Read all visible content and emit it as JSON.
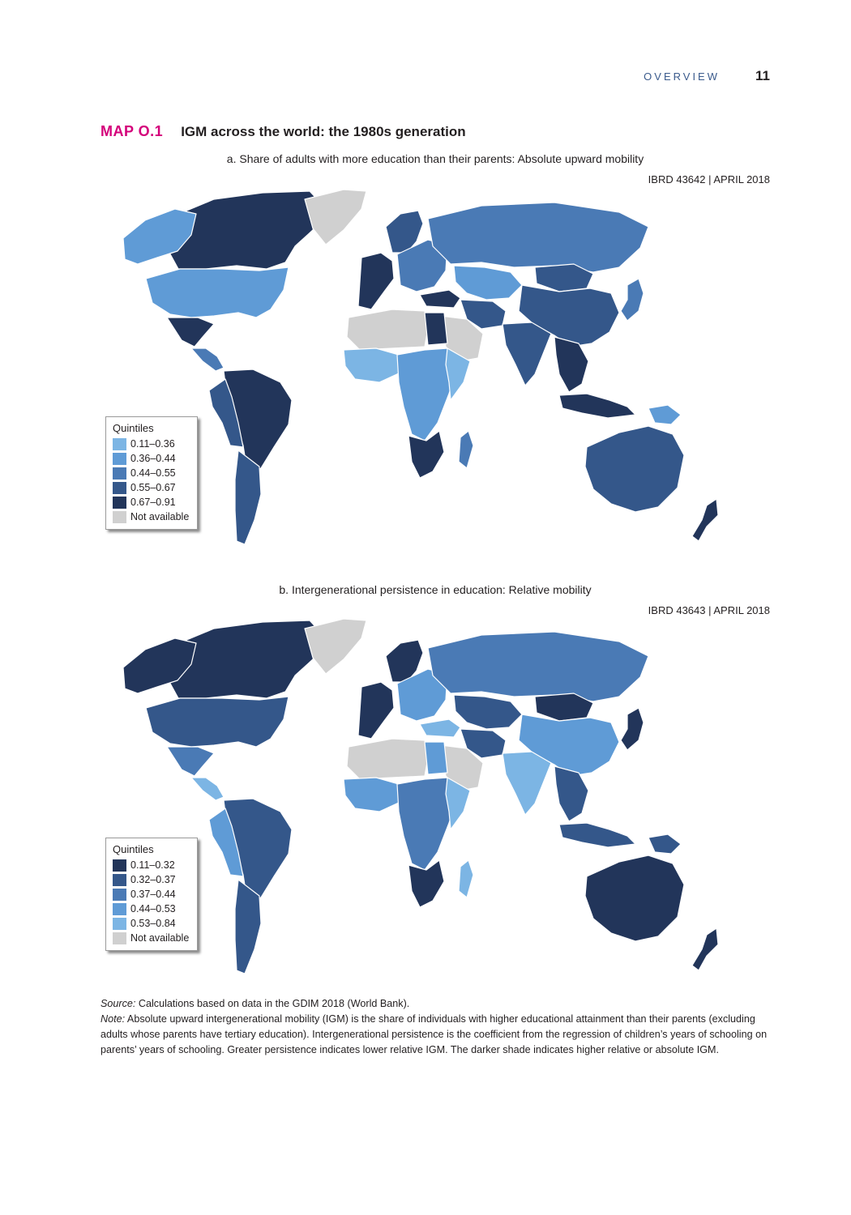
{
  "header": {
    "section": "OVERVIEW",
    "page_number": "11"
  },
  "map": {
    "label": "MAP O.1",
    "title": "IGM across the world: the 1980s generation"
  },
  "colors": {
    "q1": "#7cb5e4",
    "q2": "#5f9bd6",
    "q3": "#4a7ab5",
    "q4": "#34578a",
    "q5": "#22355a",
    "na": "#d0d0d0",
    "ocean": "#ffffff",
    "accent": "#d4007a"
  },
  "panels": [
    {
      "title": "a. Share of adults with more education than their parents: Absolute upward mobility",
      "ibrd": "IBRD 43642 | APRIL 2018",
      "legend": {
        "title": "Quintiles",
        "items": [
          {
            "label": "0.11–0.36",
            "color": "#7cb5e4"
          },
          {
            "label": "0.36–0.44",
            "color": "#5f9bd6"
          },
          {
            "label": "0.44–0.55",
            "color": "#4a7ab5"
          },
          {
            "label": "0.55–0.67",
            "color": "#34578a"
          },
          {
            "label": "0.67–0.91",
            "color": "#22355a"
          },
          {
            "label": "Not available",
            "color": "#d0d0d0"
          }
        ]
      },
      "regions": [
        {
          "name": "canada",
          "color": "#22355a"
        },
        {
          "name": "alaska",
          "color": "#5f9bd6"
        },
        {
          "name": "greenland",
          "color": "#d0d0d0"
        },
        {
          "name": "usa",
          "color": "#5f9bd6"
        },
        {
          "name": "mexico",
          "color": "#22355a"
        },
        {
          "name": "central-america",
          "color": "#4a7ab5"
        },
        {
          "name": "south-america",
          "color": "#22355a"
        },
        {
          "name": "south-america-west",
          "color": "#34578a"
        },
        {
          "name": "southern-cone",
          "color": "#34578a"
        },
        {
          "name": "western-europe",
          "color": "#22355a"
        },
        {
          "name": "scandinavia",
          "color": "#34578a"
        },
        {
          "name": "eastern-europe",
          "color": "#4a7ab5"
        },
        {
          "name": "russia",
          "color": "#4a7ab5"
        },
        {
          "name": "turkey",
          "color": "#22355a"
        },
        {
          "name": "central-asia",
          "color": "#5f9bd6"
        },
        {
          "name": "middle-east",
          "color": "#34578a"
        },
        {
          "name": "arabian-peninsula",
          "color": "#d0d0d0"
        },
        {
          "name": "north-africa",
          "color": "#d0d0d0"
        },
        {
          "name": "egypt",
          "color": "#22355a"
        },
        {
          "name": "west-africa",
          "color": "#7cb5e4"
        },
        {
          "name": "central-africa",
          "color": "#5f9bd6"
        },
        {
          "name": "east-africa",
          "color": "#7cb5e4"
        },
        {
          "name": "southern-africa",
          "color": "#22355a"
        },
        {
          "name": "madagascar",
          "color": "#4a7ab5"
        },
        {
          "name": "mongolia",
          "color": "#34578a"
        },
        {
          "name": "china",
          "color": "#34578a"
        },
        {
          "name": "india",
          "color": "#34578a"
        },
        {
          "name": "southeast-asia",
          "color": "#22355a"
        },
        {
          "name": "japan",
          "color": "#4a7ab5"
        },
        {
          "name": "indonesia",
          "color": "#22355a"
        },
        {
          "name": "papua",
          "color": "#5f9bd6"
        },
        {
          "name": "australia",
          "color": "#34578a"
        },
        {
          "name": "new-zealand",
          "color": "#22355a"
        }
      ]
    },
    {
      "title": "b. Intergenerational persistence in education: Relative mobility",
      "ibrd": "IBRD 43643 | APRIL 2018",
      "legend": {
        "title": "Quintiles",
        "items": [
          {
            "label": "0.11–0.32",
            "color": "#22355a"
          },
          {
            "label": "0.32–0.37",
            "color": "#34578a"
          },
          {
            "label": "0.37–0.44",
            "color": "#4a7ab5"
          },
          {
            "label": "0.44–0.53",
            "color": "#5f9bd6"
          },
          {
            "label": "0.53–0.84",
            "color": "#7cb5e4"
          },
          {
            "label": "Not available",
            "color": "#d0d0d0"
          }
        ]
      },
      "regions": [
        {
          "name": "canada",
          "color": "#22355a"
        },
        {
          "name": "alaska",
          "color": "#22355a"
        },
        {
          "name": "greenland",
          "color": "#d0d0d0"
        },
        {
          "name": "usa",
          "color": "#34578a"
        },
        {
          "name": "mexico",
          "color": "#4a7ab5"
        },
        {
          "name": "central-america",
          "color": "#7cb5e4"
        },
        {
          "name": "south-america",
          "color": "#34578a"
        },
        {
          "name": "south-america-west",
          "color": "#5f9bd6"
        },
        {
          "name": "southern-cone",
          "color": "#34578a"
        },
        {
          "name": "western-europe",
          "color": "#22355a"
        },
        {
          "name": "scandinavia",
          "color": "#22355a"
        },
        {
          "name": "eastern-europe",
          "color": "#5f9bd6"
        },
        {
          "name": "russia",
          "color": "#4a7ab5"
        },
        {
          "name": "turkey",
          "color": "#7cb5e4"
        },
        {
          "name": "central-asia",
          "color": "#34578a"
        },
        {
          "name": "middle-east",
          "color": "#34578a"
        },
        {
          "name": "arabian-peninsula",
          "color": "#d0d0d0"
        },
        {
          "name": "north-africa",
          "color": "#d0d0d0"
        },
        {
          "name": "egypt",
          "color": "#5f9bd6"
        },
        {
          "name": "west-africa",
          "color": "#5f9bd6"
        },
        {
          "name": "central-africa",
          "color": "#4a7ab5"
        },
        {
          "name": "east-africa",
          "color": "#7cb5e4"
        },
        {
          "name": "southern-africa",
          "color": "#22355a"
        },
        {
          "name": "madagascar",
          "color": "#7cb5e4"
        },
        {
          "name": "mongolia",
          "color": "#22355a"
        },
        {
          "name": "china",
          "color": "#5f9bd6"
        },
        {
          "name": "india",
          "color": "#7cb5e4"
        },
        {
          "name": "southeast-asia",
          "color": "#34578a"
        },
        {
          "name": "japan",
          "color": "#22355a"
        },
        {
          "name": "indonesia",
          "color": "#34578a"
        },
        {
          "name": "papua",
          "color": "#34578a"
        },
        {
          "name": "australia",
          "color": "#22355a"
        },
        {
          "name": "new-zealand",
          "color": "#22355a"
        }
      ]
    }
  ],
  "footnotes": {
    "source_label": "Source:",
    "source_text": "Calculations based on data in the GDIM 2018 (World Bank).",
    "note_label": "Note:",
    "note_text": "Absolute upward intergenerational mobility (IGM) is the share of individuals with higher educational attainment than their parents (excluding adults whose parents have tertiary education). Intergenerational persistence is the coefficient from the regression of children’s years of schooling on parents’ years of schooling. Greater persistence indicates lower relative IGM. The darker shade indicates higher relative or absolute IGM."
  }
}
